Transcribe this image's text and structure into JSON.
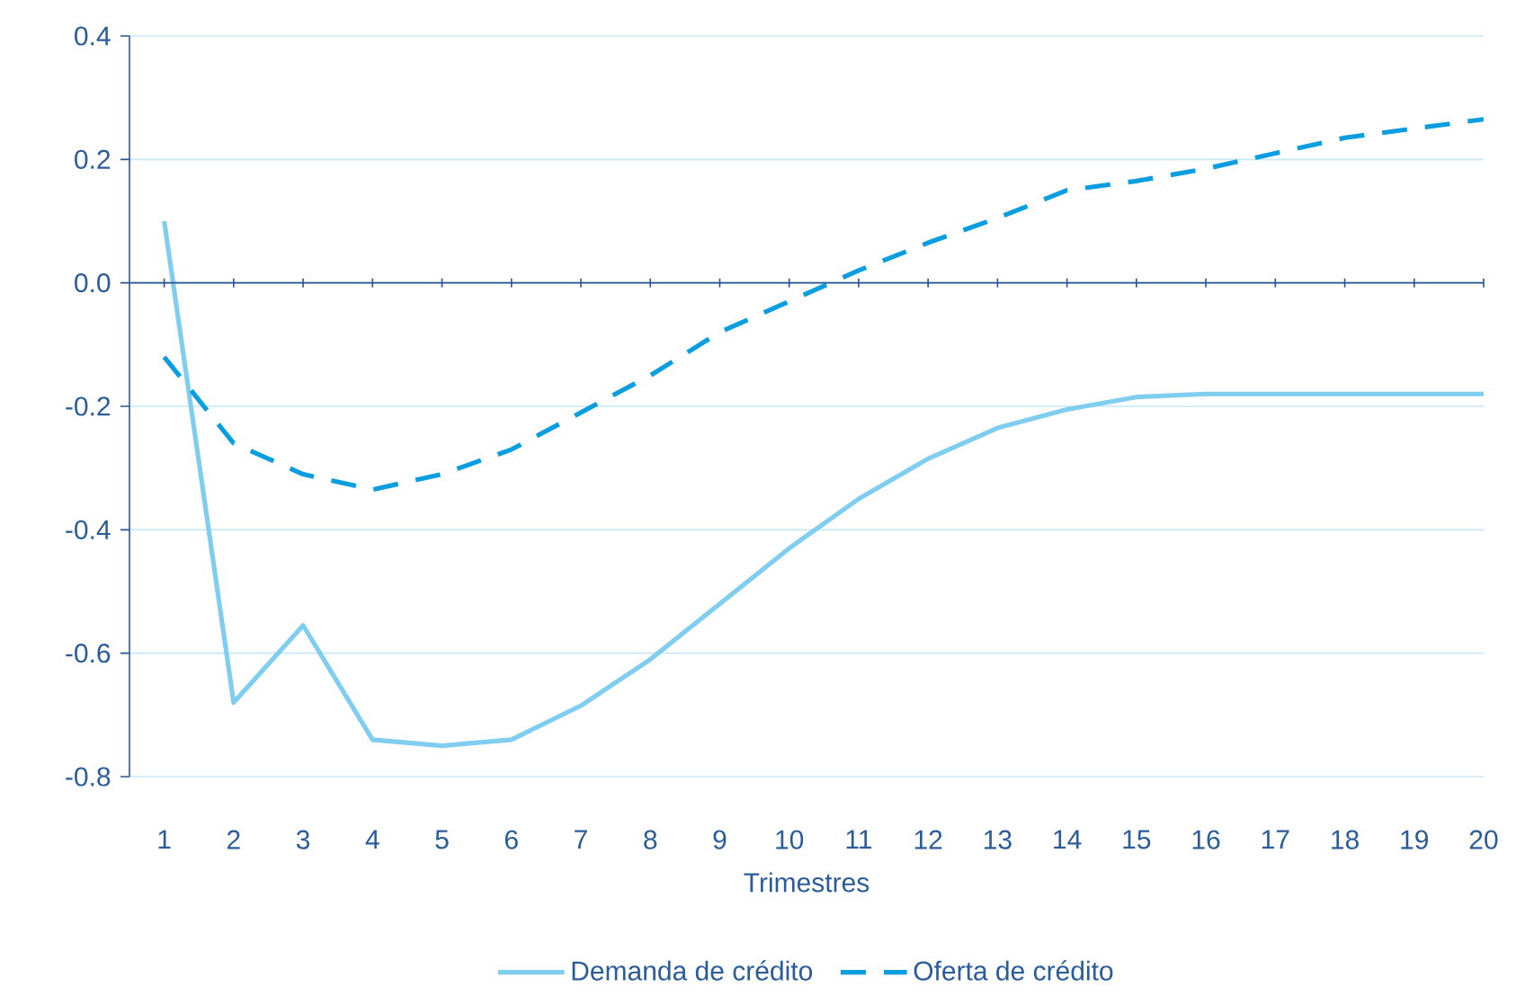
{
  "chart_data": {
    "type": "line",
    "xlabel": "Trimestres",
    "categories": [
      "1",
      "2",
      "3",
      "4",
      "5",
      "6",
      "7",
      "8",
      "9",
      "10",
      "11",
      "12",
      "13",
      "14",
      "15",
      "16",
      "17",
      "18",
      "19",
      "20"
    ],
    "series": [
      {
        "name": "Demanda de crédito",
        "color": "#7fcdef",
        "line_style": "solid",
        "values": [
          0.1,
          -0.68,
          -0.555,
          -0.74,
          -0.75,
          -0.74,
          -0.685,
          -0.61,
          -0.52,
          -0.43,
          -0.35,
          -0.285,
          -0.235,
          -0.205,
          -0.185,
          -0.18,
          -0.18,
          -0.18,
          -0.18,
          -0.18
        ]
      },
      {
        "name": "Oferta de crédito",
        "color": "#0a9ee0",
        "line_style": "dashed",
        "values": [
          -0.12,
          -0.26,
          -0.31,
          -0.335,
          -0.31,
          -0.27,
          -0.21,
          -0.15,
          -0.08,
          -0.03,
          0.02,
          0.065,
          0.105,
          0.15,
          0.165,
          0.185,
          0.21,
          0.235,
          0.25,
          0.265
        ]
      }
    ],
    "ylim": [
      -0.8,
      0.4
    ],
    "yticks": [
      -0.8,
      -0.6,
      -0.4,
      -0.2,
      {
        "value": 0,
        "label": "0.0"
      },
      0.2,
      0.4
    ],
    "ref_lines": [
      {
        "axis": "y",
        "value": 0,
        "color": "#2a5595"
      }
    ],
    "grid": "y",
    "legend": "bottom",
    "marker": "none"
  }
}
